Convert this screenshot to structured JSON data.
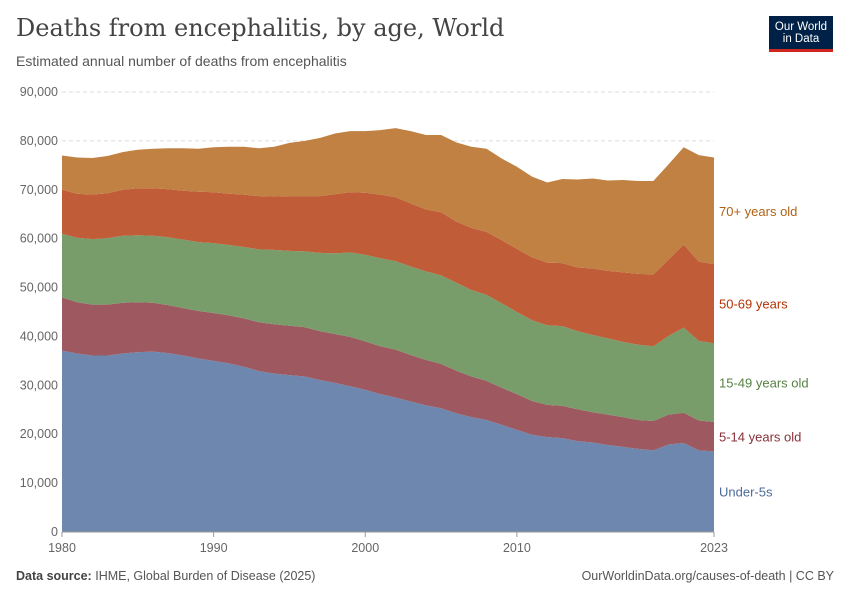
{
  "header": {
    "title": "Deaths from encephalitis, by age, World",
    "subtitle": "Estimated annual number of deaths from encephalitis",
    "logo": "Our World in Data"
  },
  "footer": {
    "source_label": "Data source:",
    "source": "IHME, Global Burden of Disease (2025)",
    "credit": "OurWorldinData.org/causes-of-death | CC BY"
  },
  "chart_data": {
    "type": "area",
    "stacked": true,
    "title": "Deaths from encephalitis, by age, World",
    "subtitle": "Estimated annual number of deaths from encephalitis",
    "ylim": [
      0,
      90000
    ],
    "xlim": [
      1980,
      2023
    ],
    "yticks": [
      0,
      10000,
      20000,
      30000,
      40000,
      50000,
      60000,
      70000,
      80000,
      90000
    ],
    "ytick_labels": [
      "0",
      "10,000",
      "20,000",
      "30,000",
      "40,000",
      "50,000",
      "60,000",
      "70,000",
      "80,000",
      "90,000"
    ],
    "xticks": [
      1980,
      1990,
      2000,
      2010,
      2023
    ],
    "xtick_labels": [
      "1980",
      "1990",
      "2000",
      "2010",
      "2023"
    ],
    "grid": "horizontal dashed",
    "legend": "right (inline labels)",
    "x": [
      1980,
      1981,
      1982,
      1983,
      1984,
      1985,
      1986,
      1987,
      1988,
      1989,
      1990,
      1991,
      1992,
      1993,
      1994,
      1995,
      1996,
      1997,
      1998,
      1999,
      2000,
      2001,
      2002,
      2003,
      2004,
      2005,
      2006,
      2007,
      2008,
      2009,
      2010,
      2011,
      2012,
      2013,
      2014,
      2015,
      2016,
      2017,
      2018,
      2019,
      2020,
      2021,
      2022,
      2023
    ],
    "series": [
      {
        "name": "Under-5s",
        "color": "#6d87ae",
        "label_color": "#4c6a9c",
        "values": [
          37100,
          36500,
          36100,
          36100,
          36500,
          36800,
          36900,
          36600,
          36100,
          35500,
          35000,
          34500,
          33800,
          32900,
          32400,
          32100,
          31800,
          31100,
          30500,
          29800,
          29100,
          28200,
          27500,
          26700,
          25900,
          25300,
          24300,
          23500,
          22900,
          21900,
          20900,
          19900,
          19400,
          19200,
          18600,
          18300,
          17800,
          17400,
          17000,
          16700,
          17900,
          18200,
          16700,
          16500
        ]
      },
      {
        "name": "5-14 years old",
        "color": "#9e5860",
        "label_color": "#883039",
        "values": [
          10900,
          10500,
          10400,
          10400,
          10400,
          10200,
          10000,
          9800,
          9700,
          9700,
          9800,
          9800,
          9900,
          10000,
          10100,
          10100,
          10100,
          10000,
          10000,
          10100,
          9900,
          9800,
          9800,
          9500,
          9300,
          9100,
          8700,
          8300,
          8000,
          7600,
          7300,
          6900,
          6600,
          6600,
          6500,
          6200,
          6200,
          6100,
          5900,
          6000,
          6100,
          6200,
          6100,
          6000
        ]
      },
      {
        "name": "15-49 years old",
        "color": "#789c6a",
        "label_color": "#578145",
        "values": [
          13000,
          13200,
          13400,
          13600,
          13700,
          13700,
          13700,
          13900,
          14000,
          14100,
          14300,
          14400,
          14600,
          14900,
          15200,
          15300,
          15500,
          16000,
          16500,
          17300,
          17700,
          18000,
          18100,
          18100,
          18100,
          18100,
          18000,
          17700,
          17600,
          17300,
          16800,
          16500,
          16300,
          16300,
          16000,
          15800,
          15600,
          15400,
          15400,
          15300,
          16100,
          17400,
          16300,
          16100
        ]
      },
      {
        "name": "50-69 years",
        "color": "#c05c38",
        "label_color": "#b13507",
        "values": [
          9000,
          9000,
          9100,
          9200,
          9400,
          9600,
          9700,
          9800,
          10000,
          10300,
          10400,
          10500,
          10700,
          10900,
          10900,
          11200,
          11300,
          11600,
          12100,
          12300,
          12700,
          13000,
          13100,
          12900,
          12700,
          12900,
          12500,
          12700,
          12900,
          12900,
          12900,
          12900,
          12800,
          12900,
          13000,
          13600,
          13800,
          14200,
          14500,
          14700,
          15600,
          17000,
          16200,
          16200
        ]
      },
      {
        "name": "70+ years old",
        "color": "#c18142",
        "label_color": "#b16214",
        "values": [
          7000,
          7400,
          7500,
          7600,
          7700,
          7900,
          8100,
          8400,
          8700,
          8800,
          9200,
          9600,
          9800,
          9800,
          10200,
          10900,
          11300,
          11900,
          12400,
          12500,
          12600,
          13200,
          14100,
          14800,
          15200,
          15800,
          16200,
          16600,
          17000,
          16700,
          16800,
          16500,
          16400,
          17200,
          18000,
          18400,
          18500,
          18900,
          19000,
          19100,
          19500,
          19900,
          21800,
          21800
        ]
      }
    ]
  }
}
